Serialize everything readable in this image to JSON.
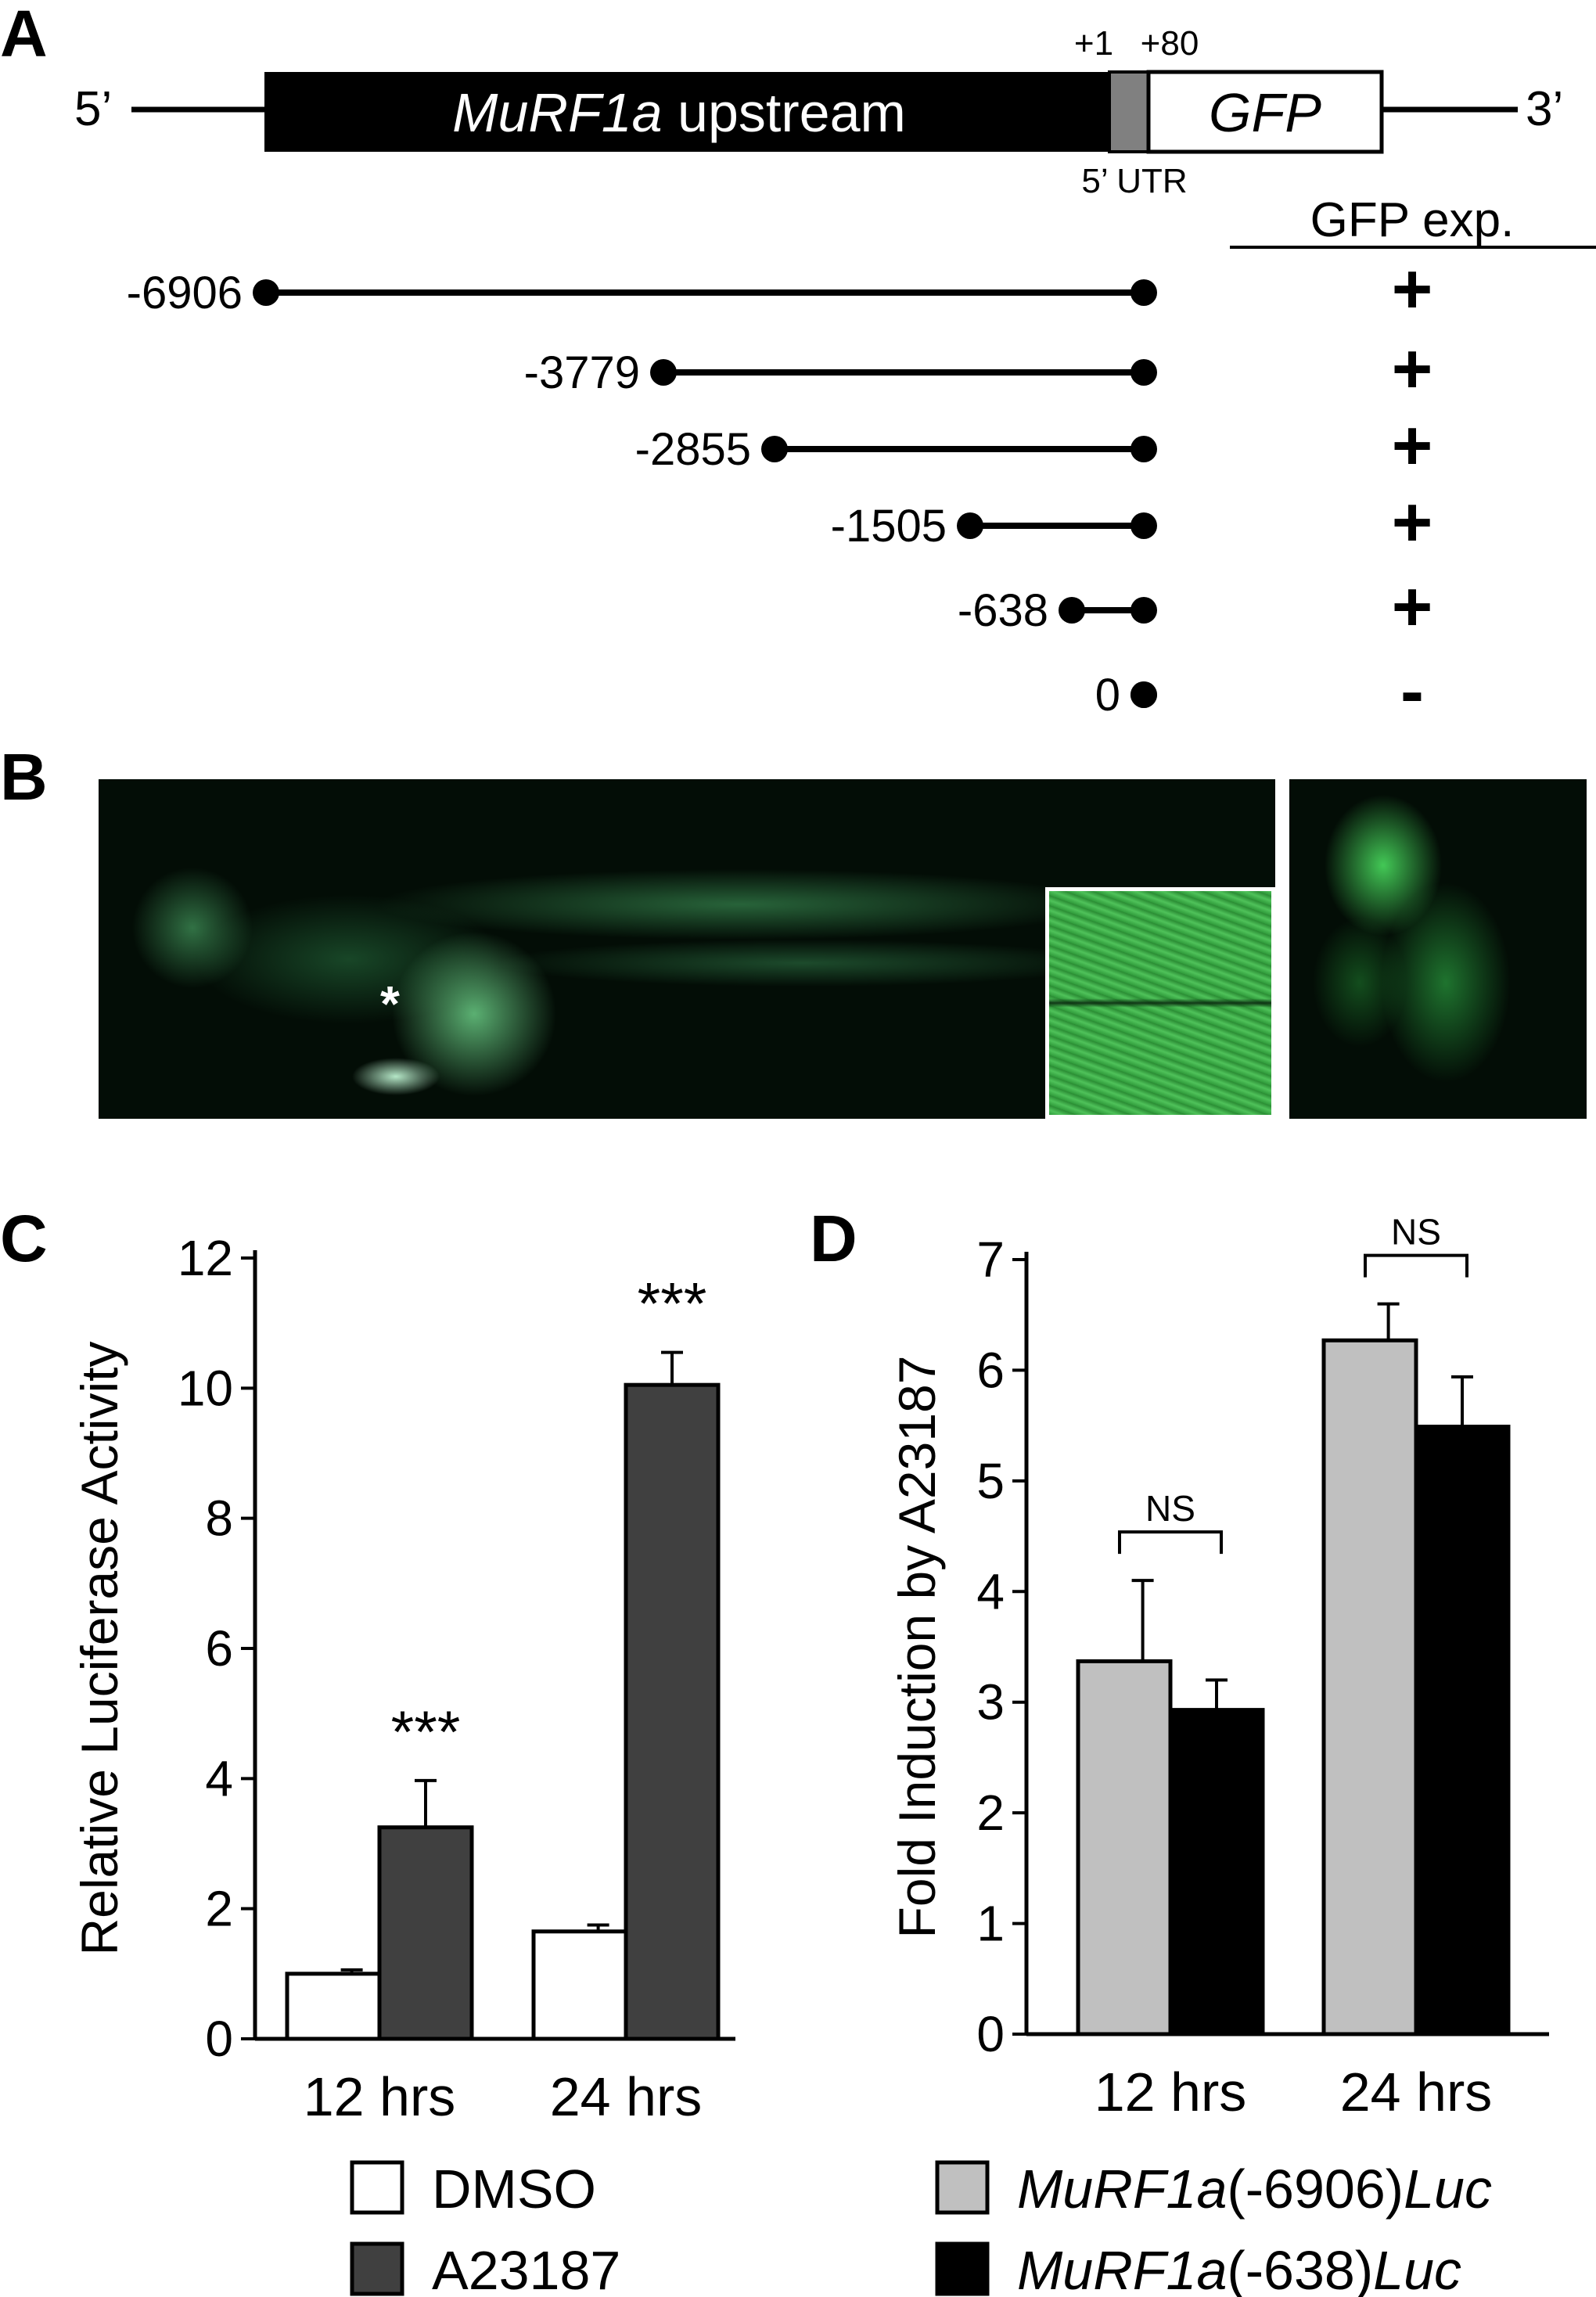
{
  "panels": {
    "a": {
      "letter": "A",
      "end5": "5’",
      "end3": "3’",
      "upstream_label_italic": "MuRF1a",
      "upstream_label_rest": " upstream",
      "gfp_label": "GFP",
      "plus1": "+1",
      "plus80": "+80",
      "utr_label": "5’ UTR",
      "exp_header": "GFP exp.",
      "constructs": [
        {
          "start": "-6906",
          "exp": "+"
        },
        {
          "start": "-3779",
          "exp": "+"
        },
        {
          "start": "-2855",
          "exp": "+"
        },
        {
          "start": "-1505",
          "exp": "+"
        },
        {
          "start": "-638",
          "exp": "+"
        },
        {
          "start": "0",
          "exp": "-"
        }
      ]
    },
    "b": {
      "letter": "B",
      "asterisk": "*"
    },
    "c": {
      "letter": "C"
    },
    "d": {
      "letter": "D"
    }
  },
  "chart_data": [
    {
      "type": "bar",
      "panel": "C",
      "ylabel": "Relative Luciferase Activity",
      "categories": [
        "12 hrs",
        "24 hrs"
      ],
      "ylim": [
        0,
        12
      ],
      "yticks": [
        0,
        2,
        4,
        6,
        8,
        10,
        12
      ],
      "series": [
        {
          "name": "DMSO",
          "values": [
            1.0,
            1.65
          ],
          "errors": [
            0.06,
            0.1
          ],
          "color": "#ffffff"
        },
        {
          "name": "A23187",
          "values": [
            3.25,
            10.05
          ],
          "errors": [
            0.72,
            0.5
          ],
          "color": "#404040"
        }
      ],
      "annotations": [
        {
          "category": "12 hrs",
          "series": "A23187",
          "text": "***"
        },
        {
          "category": "24 hrs",
          "series": "A23187",
          "text": "***"
        }
      ],
      "legend": "bottom"
    },
    {
      "type": "bar",
      "panel": "D",
      "ylabel": "Fold Induction by A23187",
      "categories": [
        "12 hrs",
        "24 hrs"
      ],
      "ylim": [
        0,
        7
      ],
      "yticks": [
        0,
        1,
        2,
        3,
        4,
        5,
        6,
        7
      ],
      "series": [
        {
          "name_italic": "MuRF1a",
          "name_mid": "(-6906)",
          "name_italic2": "Luc",
          "values": [
            3.37,
            6.27
          ],
          "errors": [
            0.73,
            0.33
          ],
          "color": "#c0c0c0"
        },
        {
          "name_italic": "MuRF1a",
          "name_mid": "(-638)",
          "name_italic2": "Luc",
          "values": [
            2.93,
            5.49
          ],
          "errors": [
            0.27,
            0.45
          ],
          "color": "#000000"
        }
      ],
      "annotations": [
        {
          "category": "12 hrs",
          "text": "NS"
        },
        {
          "category": "24 hrs",
          "text": "NS"
        }
      ],
      "legend": "bottom"
    }
  ]
}
